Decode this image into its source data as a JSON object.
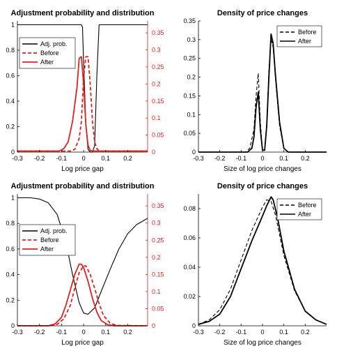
{
  "chart_data": [
    {
      "type": "line",
      "title": "Adjustment probability and distribution",
      "xlabel": "Log price gap",
      "ylabel": "",
      "xlim": [
        -0.3,
        0.29
      ],
      "ylim": [
        0,
        1.03
      ],
      "y2lim": [
        0,
        0.385
      ],
      "xticks": [
        "-0.3",
        "-0.2",
        "-0.1",
        "0",
        "0.1",
        "0.2"
      ],
      "yticks": [
        "0",
        "0.2",
        "0.4",
        "0.6",
        "0.8",
        "1"
      ],
      "y2ticks": [
        "0",
        "0.05",
        "0.1",
        "0.15",
        "0.2",
        "0.25",
        "0.3",
        "0.35"
      ],
      "grid": false,
      "legend_position": "top-left",
      "series": [
        {
          "name": "Adj. prob.",
          "axis": "left",
          "color": "#000000",
          "dash": "solid",
          "x": [
            -0.3,
            -0.01,
            -0.005,
            0.0,
            0.01,
            0.02,
            0.03,
            0.04,
            0.05,
            0.06,
            0.07,
            0.29
          ],
          "y": [
            1,
            1,
            0.98,
            0.7,
            0.22,
            0.02,
            0,
            0,
            0.05,
            0.6,
            1,
            1
          ]
        },
        {
          "name": "Before",
          "axis": "right",
          "color": "#e01f1f",
          "dash": "dashed",
          "x": [
            -0.3,
            -0.06,
            -0.04,
            -0.02,
            -0.01,
            0.0,
            0.01,
            0.02,
            0.03,
            0.04,
            0.05,
            0.06,
            0.07,
            0.29
          ],
          "y": [
            0.003,
            0.003,
            0.008,
            0.04,
            0.09,
            0.22,
            0.28,
            0.28,
            0.2,
            0.09,
            0.03,
            0.01,
            0.003,
            0.003
          ]
        },
        {
          "name": "After",
          "axis": "right",
          "color": "#e01f1f",
          "dash": "solid",
          "x": [
            -0.3,
            -0.11,
            -0.09,
            -0.07,
            -0.05,
            -0.03,
            -0.02,
            -0.01,
            0.0,
            0.01,
            0.02,
            0.03,
            0.04,
            0.29
          ],
          "y": [
            0.003,
            0.003,
            0.01,
            0.03,
            0.09,
            0.19,
            0.275,
            0.28,
            0.2,
            0.08,
            0.02,
            0.005,
            0.003,
            0.003
          ]
        }
      ]
    },
    {
      "type": "line",
      "title": "Density of price changes",
      "xlabel": "Size of log price changes",
      "ylabel": "",
      "xlim": [
        -0.3,
        0.3
      ],
      "ylim": [
        0,
        0.35
      ],
      "xticks": [
        "-0.3",
        "-0.2",
        "-0.1",
        "0",
        "0.1",
        "0.2"
      ],
      "yticks": [
        "0",
        "0.05",
        "0.1",
        "0.15",
        "0.2",
        "0.25",
        "0.3",
        "0.35"
      ],
      "grid": false,
      "legend_position": "top-right",
      "series": [
        {
          "name": "Before",
          "color": "#000000",
          "dash": "dashed",
          "x": [
            -0.3,
            -0.08,
            -0.06,
            -0.04,
            -0.03,
            -0.02,
            -0.01,
            0.0,
            0.01,
            0.02,
            0.03,
            0.04,
            0.05,
            0.06,
            0.08,
            0.1,
            0.12,
            0.3
          ],
          "y": [
            0,
            0,
            0.01,
            0.06,
            0.15,
            0.21,
            0.08,
            0.005,
            0.005,
            0.08,
            0.22,
            0.3,
            0.28,
            0.2,
            0.07,
            0.01,
            0,
            0
          ]
        },
        {
          "name": "After",
          "color": "#000000",
          "dash": "solid",
          "x": [
            -0.3,
            -0.07,
            -0.05,
            -0.04,
            -0.03,
            -0.02,
            -0.01,
            0.0,
            0.01,
            0.02,
            0.03,
            0.04,
            0.05,
            0.06,
            0.08,
            0.1,
            0.12,
            0.3
          ],
          "y": [
            0,
            0,
            0.01,
            0.04,
            0.12,
            0.16,
            0.06,
            0.005,
            0.005,
            0.07,
            0.2,
            0.315,
            0.29,
            0.21,
            0.08,
            0.01,
            0,
            0
          ]
        }
      ]
    },
    {
      "type": "line",
      "title": "Adjustment probability and distribution",
      "xlabel": "Log price gap",
      "ylabel": "",
      "xlim": [
        -0.3,
        0.29
      ],
      "ylim": [
        0,
        1.03
      ],
      "y2lim": [
        0,
        0.385
      ],
      "xticks": [
        "-0.3",
        "-0.2",
        "-0.1",
        "0",
        "0.1",
        "0.2"
      ],
      "yticks": [
        "0",
        "0.2",
        "0.4",
        "0.6",
        "0.8",
        "1"
      ],
      "y2ticks": [
        "0",
        "0.05",
        "0.1",
        "0.15",
        "0.2",
        "0.25",
        "0.3",
        "0.35"
      ],
      "grid": false,
      "legend_position": "center-left",
      "series": [
        {
          "name": "Adj. prob.",
          "axis": "left",
          "color": "#000000",
          "dash": "solid",
          "x": [
            -0.3,
            -0.24,
            -0.2,
            -0.16,
            -0.12,
            -0.08,
            -0.05,
            -0.02,
            0.0,
            0.02,
            0.05,
            0.08,
            0.12,
            0.16,
            0.2,
            0.24,
            0.29
          ],
          "y": [
            1.0,
            1.0,
            0.99,
            0.96,
            0.87,
            0.65,
            0.4,
            0.18,
            0.1,
            0.09,
            0.14,
            0.27,
            0.44,
            0.6,
            0.72,
            0.79,
            0.84
          ]
        },
        {
          "name": "Before",
          "axis": "right",
          "color": "#e01f1f",
          "dash": "dashed",
          "x": [
            -0.3,
            -0.15,
            -0.12,
            -0.09,
            -0.06,
            -0.04,
            -0.02,
            0.0,
            0.01,
            0.03,
            0.05,
            0.07,
            0.09,
            0.12,
            0.15,
            0.29
          ],
          "y": [
            0,
            0,
            0.004,
            0.02,
            0.06,
            0.11,
            0.155,
            0.175,
            0.175,
            0.15,
            0.11,
            0.065,
            0.03,
            0.008,
            0.001,
            0
          ]
        },
        {
          "name": "After",
          "axis": "right",
          "color": "#e01f1f",
          "dash": "solid",
          "x": [
            -0.3,
            -0.16,
            -0.13,
            -0.1,
            -0.08,
            -0.06,
            -0.04,
            -0.02,
            -0.01,
            0.0,
            0.02,
            0.04,
            0.06,
            0.08,
            0.11,
            0.14,
            0.29
          ],
          "y": [
            0,
            0,
            0.005,
            0.025,
            0.06,
            0.105,
            0.15,
            0.18,
            0.18,
            0.17,
            0.13,
            0.08,
            0.04,
            0.015,
            0.003,
            0,
            0
          ]
        }
      ]
    },
    {
      "type": "line",
      "title": "Density of price changes",
      "xlabel": "Size of log price changes",
      "ylabel": "",
      "xlim": [
        -0.3,
        0.3
      ],
      "ylim": [
        0,
        0.09
      ],
      "xticks": [
        "-0.3",
        "-0.2",
        "-0.1",
        "0",
        "0.1",
        "0.2"
      ],
      "yticks": [
        "0",
        "0.02",
        "0.04",
        "0.06",
        "0.08"
      ],
      "grid": false,
      "legend_position": "top-right",
      "series": [
        {
          "name": "Before",
          "color": "#000000",
          "dash": "dashed",
          "x": [
            -0.3,
            -0.25,
            -0.2,
            -0.15,
            -0.1,
            -0.05,
            0.0,
            0.02,
            0.04,
            0.06,
            0.1,
            0.15,
            0.2,
            0.25,
            0.3
          ],
          "y": [
            0.001,
            0.004,
            0.011,
            0.025,
            0.045,
            0.065,
            0.081,
            0.086,
            0.085,
            0.076,
            0.048,
            0.024,
            0.01,
            0.004,
            0.001
          ]
        },
        {
          "name": "After",
          "color": "#000000",
          "dash": "solid",
          "x": [
            -0.3,
            -0.25,
            -0.2,
            -0.15,
            -0.1,
            -0.05,
            0.0,
            0.02,
            0.04,
            0.05,
            0.07,
            0.1,
            0.15,
            0.2,
            0.25,
            0.3
          ],
          "y": [
            0.001,
            0.003,
            0.008,
            0.02,
            0.039,
            0.058,
            0.075,
            0.082,
            0.088,
            0.086,
            0.074,
            0.051,
            0.025,
            0.01,
            0.004,
            0.001
          ]
        }
      ]
    }
  ]
}
